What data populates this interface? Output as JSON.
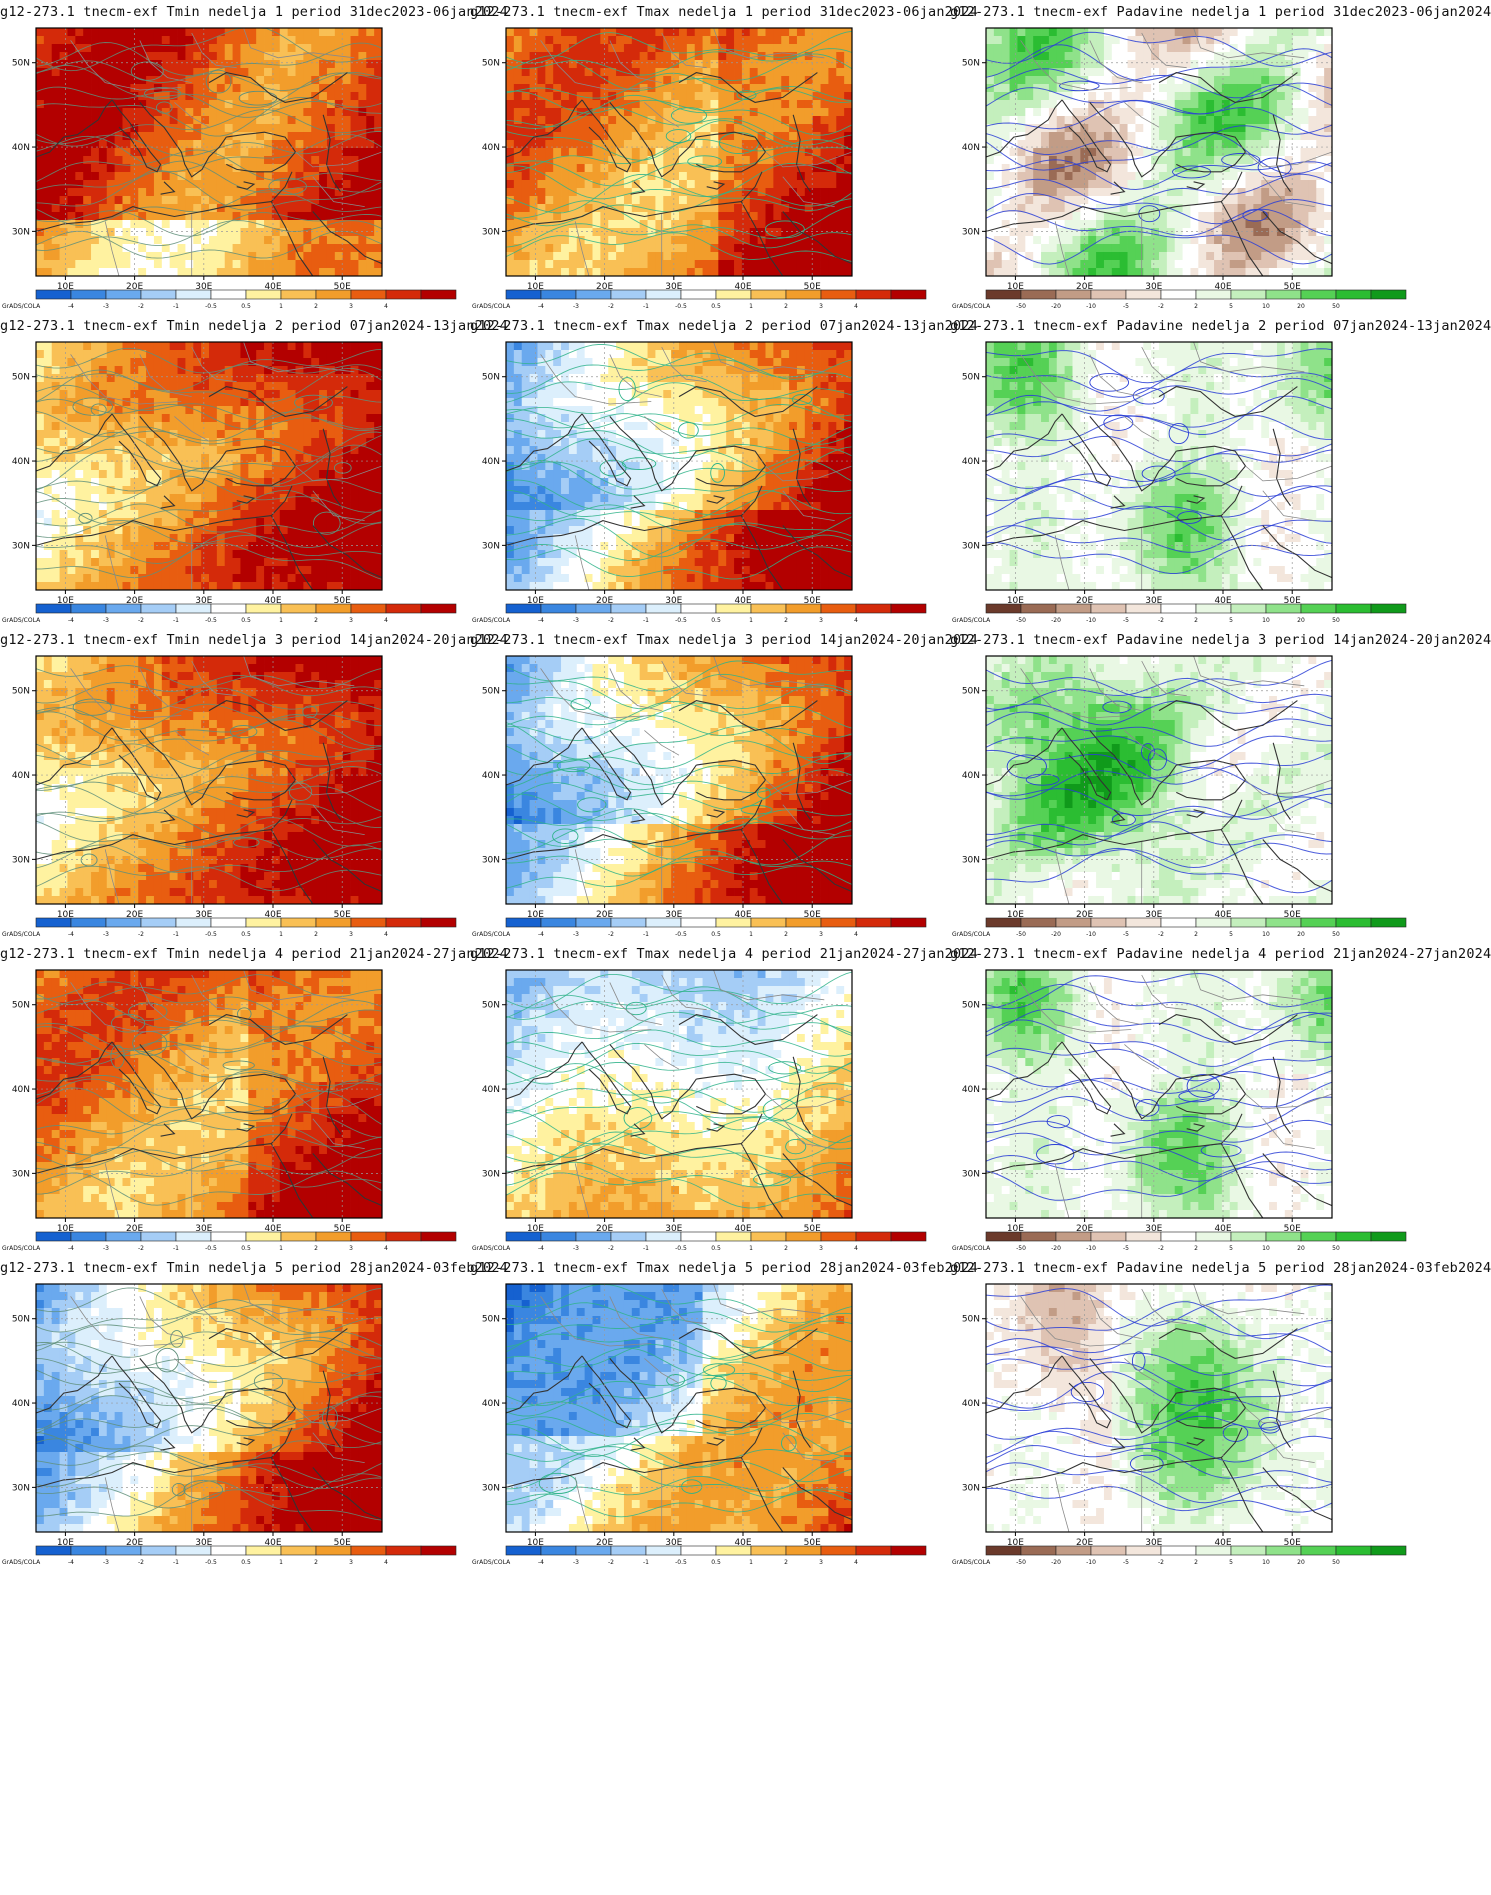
{
  "colorbars": {
    "temp": {
      "labels": [
        "-4",
        "-3",
        "-2",
        "-1",
        "-0.5",
        "0.5",
        "1",
        "2",
        "3",
        "4"
      ],
      "colors": [
        "#1561d0",
        "#3a86e0",
        "#6aa9ee",
        "#a5cdf6",
        "#dceffc",
        "#ffffff",
        "#fff2a0",
        "#f9c055",
        "#f29d2b",
        "#e85d10",
        "#d42a0a",
        "#b30000"
      ]
    },
    "precip": {
      "labels": [
        "-50",
        "-20",
        "-10",
        "-5",
        "-2",
        "2",
        "5",
        "10",
        "20",
        "50"
      ],
      "colors": [
        "#6b3a2b",
        "#9a6b55",
        "#c29c86",
        "#dfc3b3",
        "#f3e6dc",
        "#ffffff",
        "#e9f8e4",
        "#c4efbd",
        "#8fe28a",
        "#55d155",
        "#2bbd32",
        "#109a1b"
      ]
    }
  },
  "grads_label": "GrADS/COLA",
  "axes": {
    "x_ticks": [
      "10E",
      "20E",
      "30E",
      "40E",
      "50E"
    ],
    "y_ticks": [
      "50N",
      "40N",
      "30N"
    ]
  },
  "rows": [
    {
      "week": "1",
      "period": "31dec2023-06jan2024"
    },
    {
      "week": "2",
      "period": "07jan2024-13jan2024"
    },
    {
      "week": "3",
      "period": "14jan2024-20jan2024"
    },
    {
      "week": "4",
      "period": "21jan2024-27jan2024"
    },
    {
      "week": "5",
      "period": "28jan2024-03feb2024"
    }
  ],
  "panels": [
    {
      "title": "g12-273.1 tnecm-exf Tmin nedelja 1 period 31dec2023-06jan2024",
      "variable": "Tmin",
      "cbar": "temp",
      "dominant": "warm-strong"
    },
    {
      "title": "g12-273.1 tnecm-exf Tmax nedelja 1 period 31dec2023-06jan2024",
      "variable": "Tmax",
      "cbar": "temp",
      "dominant": "warm"
    },
    {
      "title": "g12-273.1 tnecm-exf Padavine nedelja 1 period 31dec2023-06jan2024",
      "variable": "Padavine",
      "cbar": "precip",
      "dominant": "mixed-dry"
    },
    {
      "title": "g12-273.1 tnecm-exf Tmin nedelja 2 period 07jan2024-13jan2024",
      "variable": "Tmin",
      "cbar": "temp",
      "dominant": "warm-east"
    },
    {
      "title": "g12-273.1 tnecm-exf Tmax nedelja 2 period 07jan2024-13jan2024",
      "variable": "Tmax",
      "cbar": "temp",
      "dominant": "cold-west-warm-east"
    },
    {
      "title": "g12-273.1 tnecm-exf Padavine nedelja 2 period 07jan2024-13jan2024",
      "variable": "Padavine",
      "cbar": "precip",
      "dominant": "wet"
    },
    {
      "title": "g12-273.1 tnecm-exf Tmin nedelja 3 period 14jan2024-20jan2024",
      "variable": "Tmin",
      "cbar": "temp",
      "dominant": "warm-east"
    },
    {
      "title": "g12-273.1 tnecm-exf Tmax nedelja 3 period 14jan2024-20jan2024",
      "variable": "Tmax",
      "cbar": "temp",
      "dominant": "cold-west-warm-east"
    },
    {
      "title": "g12-273.1 tnecm-exf Padavine nedelja 3 period 14jan2024-20jan2024",
      "variable": "Padavine",
      "cbar": "precip",
      "dominant": "wet-strong"
    },
    {
      "title": "g12-273.1 tnecm-exf Tmin nedelja 4 period 21jan2024-27jan2024",
      "variable": "Tmin",
      "cbar": "temp",
      "dominant": "warm"
    },
    {
      "title": "g12-273.1 tnecm-exf Tmax nedelja 4 period 21jan2024-27jan2024",
      "variable": "Tmax",
      "cbar": "temp",
      "dominant": "cold-north"
    },
    {
      "title": "g12-273.1 tnecm-exf Padavine nedelja 4 period 21jan2024-27jan2024",
      "variable": "Padavine",
      "cbar": "precip",
      "dominant": "wet"
    },
    {
      "title": "g12-273.1 tnecm-exf Tmin nedelja 5 period 28jan2024-03feb2024",
      "variable": "Tmin",
      "cbar": "temp",
      "dominant": "cold-west-warm-east"
    },
    {
      "title": "g12-273.1 tnecm-exf Tmax nedelja 5 period 28jan2024-03feb2024",
      "variable": "Tmax",
      "cbar": "temp",
      "dominant": "cold-strong-warm-southeast"
    },
    {
      "title": "g12-273.1 tnecm-exf Padavine nedelja 5 period 28jan2024-03feb2024",
      "variable": "Padavine",
      "cbar": "precip",
      "dominant": "wet-east-dry-west"
    }
  ]
}
